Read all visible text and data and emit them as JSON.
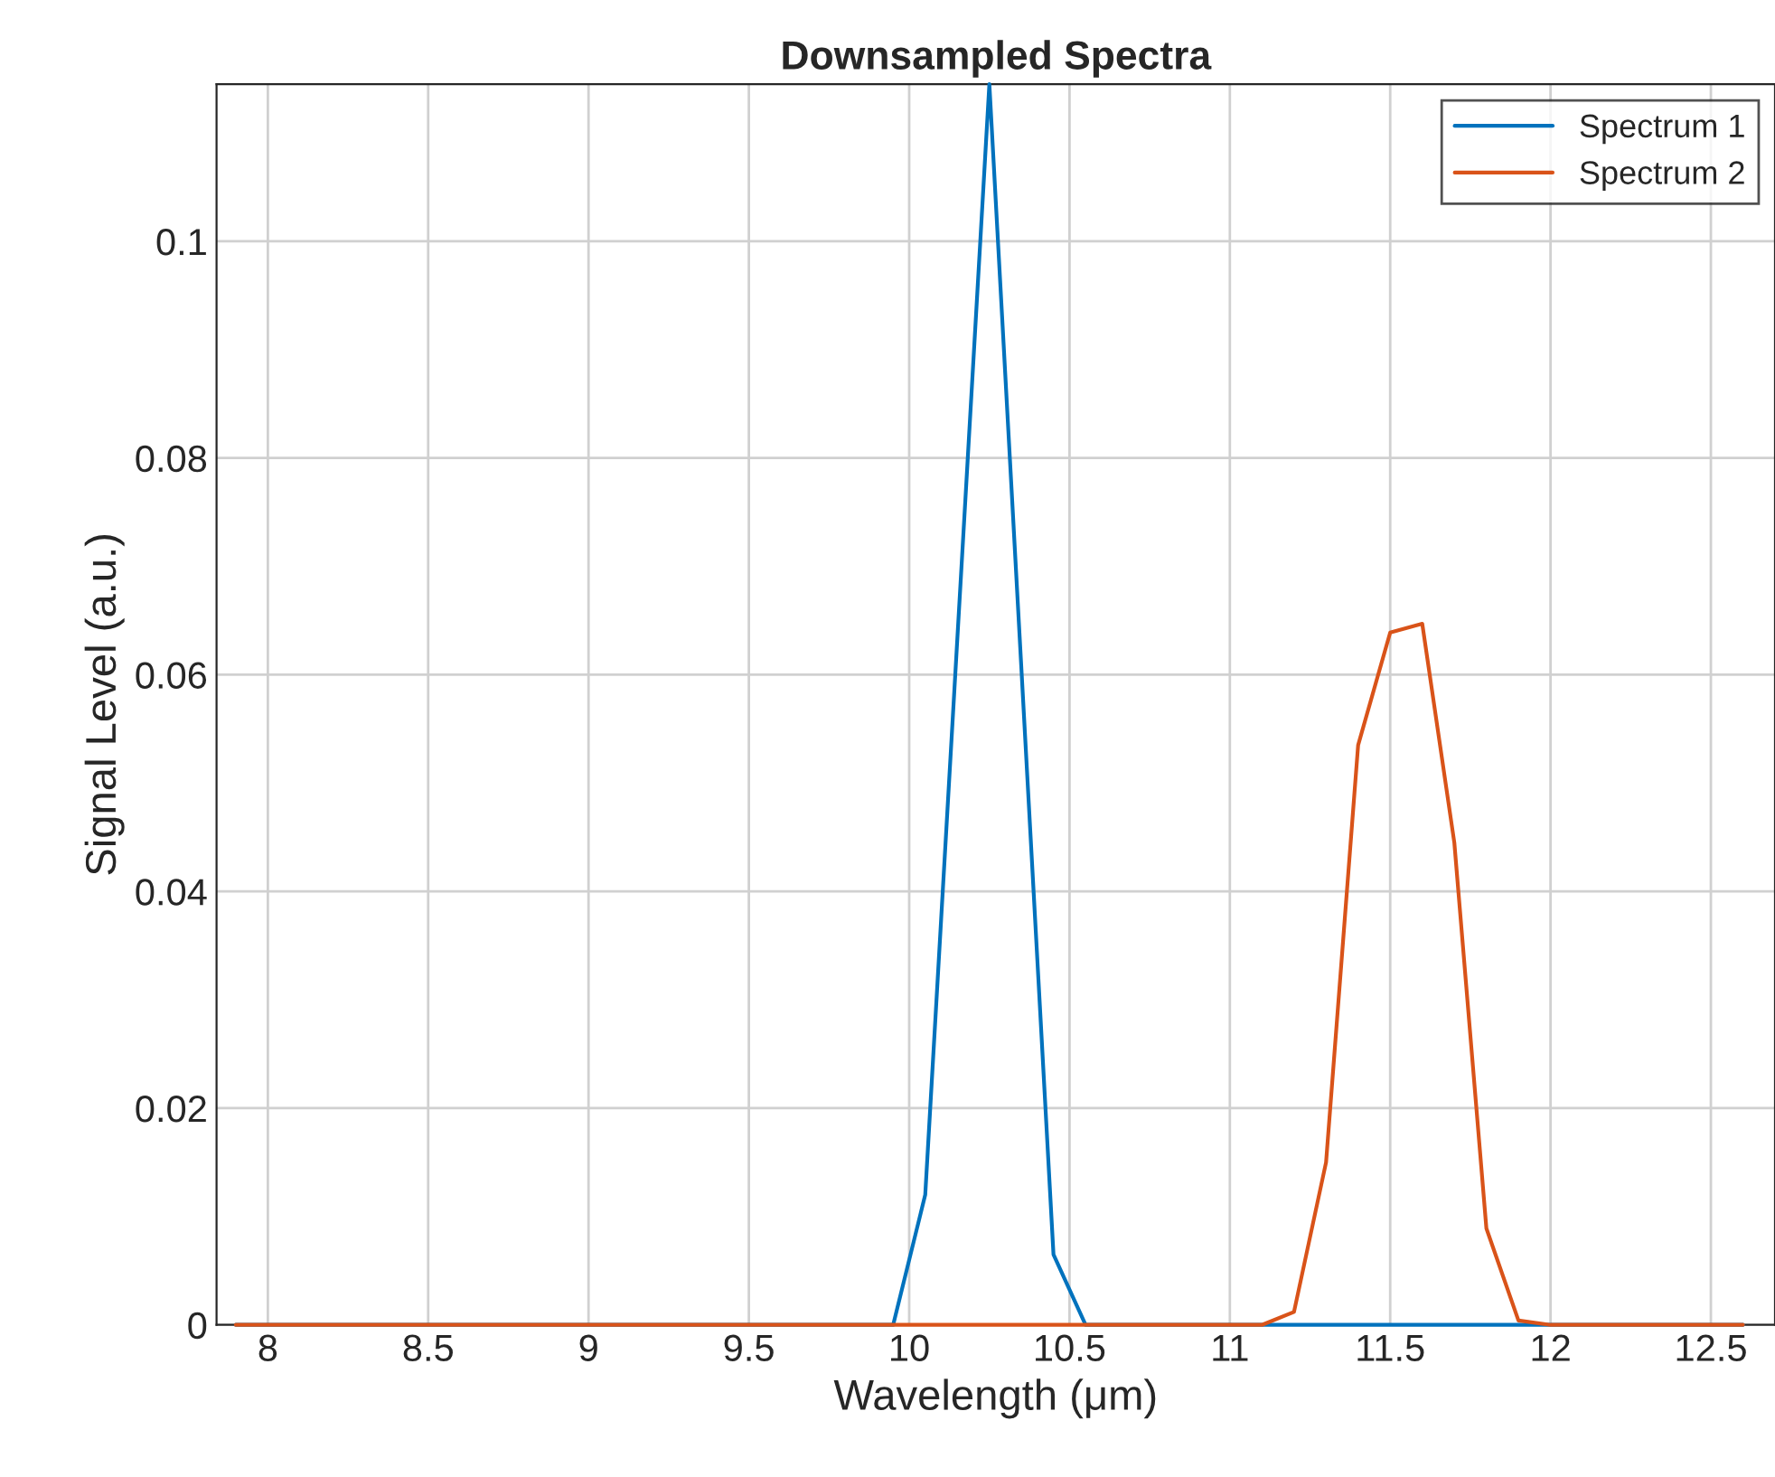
{
  "chart_data": {
    "type": "line",
    "title": "Downsampled Spectra",
    "xlabel": "Wavelength (μm)",
    "ylabel": "Signal Level (a.u.)",
    "series": [
      {
        "name": "Spectrum 1",
        "color": "#0072bd",
        "x": [
          7.9,
          9.95,
          10.05,
          10.25,
          10.45,
          10.55,
          12.6
        ],
        "values": [
          0,
          0,
          0.012,
          0.1145,
          0.0065,
          0,
          0
        ]
      },
      {
        "name": "Spectrum 2",
        "color": "#d95319",
        "x": [
          7.9,
          11.1,
          11.2,
          11.3,
          11.4,
          11.5,
          11.6,
          11.7,
          11.8,
          11.9,
          12.0,
          12.6
        ],
        "values": [
          0,
          0,
          0.0012,
          0.015,
          0.0535,
          0.0639,
          0.0647,
          0.0445,
          0.0089,
          0.0004,
          0,
          0
        ]
      }
    ],
    "xlim": [
      7.84,
      12.7
    ],
    "xticks": [
      8,
      8.5,
      9,
      9.5,
      10,
      10.5,
      11,
      11.5,
      12,
      12.5
    ],
    "ylim": [
      0,
      0.1145
    ],
    "yticks": [
      0,
      0.02,
      0.04,
      0.06,
      0.08,
      0.1
    ],
    "grid": true,
    "legend": "top right",
    "line_style": "solid",
    "marker": "none"
  }
}
